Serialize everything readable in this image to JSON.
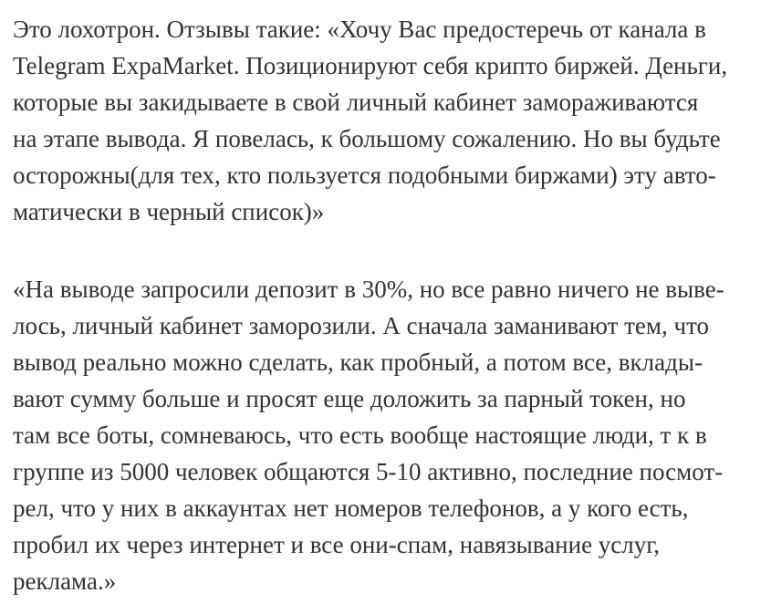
{
  "colors": {
    "background": "#ffffff",
    "text": "#333333"
  },
  "article": {
    "language": "ru",
    "paragraphs": [
      {
        "lines": [
          "Это лохотрон. Отзывы такие: «Хочу Вас предостеречь от канала в",
          "Telegram ExpaMarket. Позиционируют себя крипто биржей. Деньги,",
          "которые вы закидываете в свой личный кабинет замораживаются",
          "на этапе вывода. Я повелась, к большому сожалению. Но вы будьте",
          "осторожны(для тех, кто пользуется подобными биржами) эту авто-",
          "матически в черный список)»"
        ]
      },
      {
        "lines": [
          "«На выводе запросили депозит в 30%, но все равно ничего не выве-",
          "лось, личный кабинет заморозили. А сначала заманивают тем, что",
          "вывод реально можно сделать, как пробный, а потом все, вклады-",
          "вают сумму больше и просят еще доложить за парный токен, но",
          "там все боты, сомневаюсь, что есть вообще настоящие люди, т к в",
          "группе из 5000 человек общаются 5-10 активно, последние посмот-",
          "рел, что у них в аккаунтах нет номеров телефонов, а у кого есть,",
          "пробил их через интернет и все они-спам, навязывание услуг,",
          "реклама.»"
        ]
      }
    ]
  }
}
